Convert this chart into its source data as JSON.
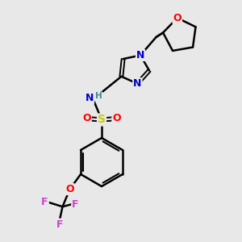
{
  "bg_color": "#e8e8e8",
  "bond_color": "#000000",
  "atom_colors": {
    "N": "#0000cc",
    "O": "#ff0000",
    "S": "#cccc00",
    "F": "#cc44cc",
    "H": "#448888",
    "C": "#000000"
  },
  "figsize": [
    3.0,
    3.0
  ],
  "dpi": 100
}
